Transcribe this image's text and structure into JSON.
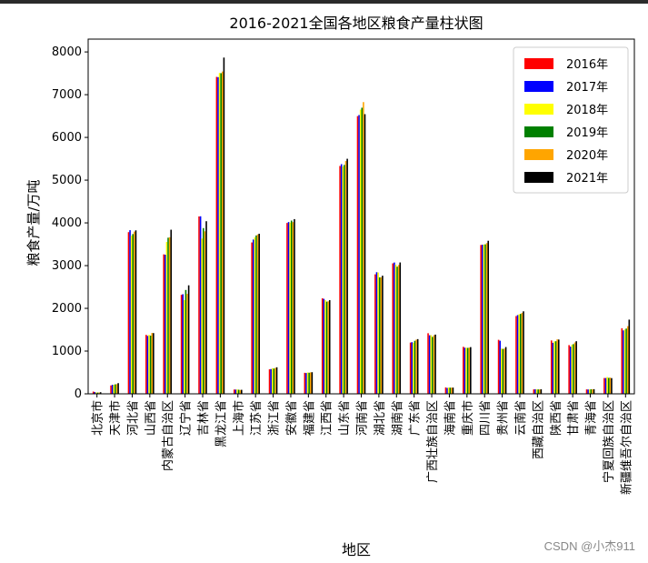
{
  "chart_data": {
    "type": "bar",
    "title": "2016-2021全国各地区粮食产量柱状图",
    "xlabel": "地区",
    "ylabel": "粮食产量/万吨",
    "ylim": [
      0,
      8300
    ],
    "yticks": [
      0,
      1000,
      2000,
      3000,
      4000,
      5000,
      6000,
      7000,
      8000
    ],
    "legend_position": "top-right",
    "categories": [
      "北京市",
      "天津市",
      "河北省",
      "山西省",
      "内蒙古自治区",
      "辽宁省",
      "吉林省",
      "黑龙江省",
      "上海市",
      "江苏省",
      "浙江省",
      "安徽省",
      "福建省",
      "江西省",
      "山东省",
      "河南省",
      "湖北省",
      "湖南省",
      "广东省",
      "广西壮族自治区",
      "海南省",
      "重庆市",
      "四川省",
      "贵州省",
      "云南省",
      "西藏自治区",
      "陕西省",
      "甘肃省",
      "青海省",
      "宁夏回族自治区",
      "新疆维吾尔自治区"
    ],
    "series": [
      {
        "name": "2016年",
        "color": "#ff0000",
        "values": [
          53,
          196,
          3783,
          1380,
          3263,
          2316,
          4151,
          7416,
          101,
          3542,
          573,
          3998,
          492,
          2235,
          5332,
          6498,
          2796,
          3053,
          1199,
          1418,
          150,
          1100,
          3483,
          1264,
          1820,
          104,
          1249,
          1140,
          104,
          370,
          1535
        ]
      },
      {
        "name": "2017年",
        "color": "#0000ff",
        "values": [
          41,
          212,
          3829,
          1355,
          3255,
          2331,
          4154,
          7410,
          99,
          3610,
          580,
          4020,
          487,
          2222,
          5374,
          6524,
          2846,
          3073,
          1209,
          1370,
          138,
          1079,
          3489,
          1242,
          1843,
          106,
          1194,
          1105,
          102,
          370,
          1484
        ]
      },
      {
        "name": "2018年",
        "color": "#ffff00",
        "values": [
          34,
          210,
          3700,
          1380,
          3553,
          2192,
          3633,
          7507,
          103,
          3660,
          599,
          4007,
          499,
          2191,
          5320,
          6649,
          2839,
          3023,
          1193,
          1373,
          147,
          1079,
          3494,
          1059,
          1861,
          104,
          1226,
          1151,
          103,
          393,
          1504
        ]
      },
      {
        "name": "2019年",
        "color": "#008000",
        "values": [
          29,
          223,
          3739,
          1362,
          3653,
          2430,
          3878,
          7503,
          96,
          3706,
          592,
          4054,
          494,
          2157,
          5357,
          6695,
          2725,
          2975,
          1240,
          1332,
          145,
          1075,
          3498,
          1051,
          1870,
          103,
          1231,
          1163,
          106,
          373,
          1527
        ]
      },
      {
        "name": "2020年",
        "color": "#ffa500",
        "values": [
          31,
          228,
          3796,
          1424,
          3664,
          2339,
          3803,
          7541,
          91,
          3729,
          606,
          4019,
          502,
          2164,
          5447,
          6826,
          2727,
          3015,
          1268,
          1370,
          145,
          1081,
          3527,
          1058,
          1896,
          103,
          1275,
          1202,
          107,
          380,
          1583
        ]
      },
      {
        "name": "2021年",
        "color": "#000000",
        "values": [
          38,
          250,
          3825,
          1421,
          3840,
          2539,
          4039,
          7868,
          94,
          3746,
          621,
          4088,
          506,
          2192,
          5500,
          6544,
          2764,
          3074,
          1280,
          1386,
          146,
          1093,
          3582,
          1095,
          1931,
          106,
          1270,
          1231,
          109,
          368,
          1736
        ]
      }
    ]
  },
  "watermark": "CSDN @小杰911"
}
